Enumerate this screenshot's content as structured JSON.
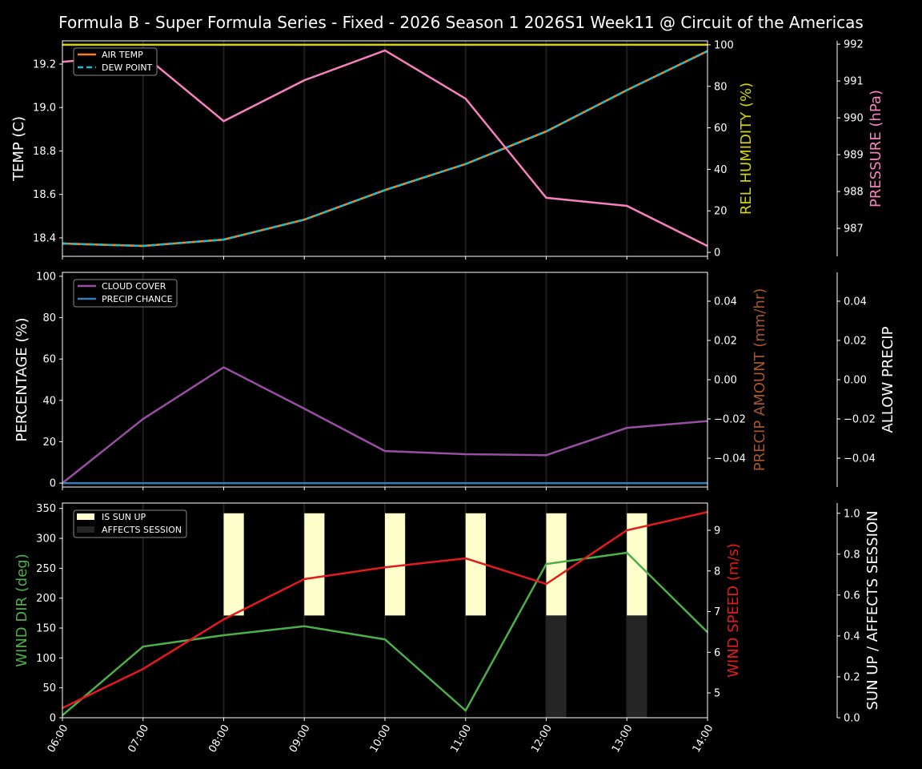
{
  "title": "Formula B - Super Formula Series - Fixed - 2026 Season 1 2026S1 Week11 @ Circuit of the Americas",
  "chart_data": [
    {
      "type": "line",
      "x": [
        "06:00",
        "07:00",
        "08:00",
        "09:00",
        "10:00",
        "11:00",
        "12:00",
        "13:00",
        "14:00"
      ],
      "axes": {
        "left": {
          "label": "TEMP (C)",
          "color": "#ffffff",
          "range": [
            18.315,
            19.307
          ],
          "ticks": [
            "18.4",
            "18.6",
            "18.8",
            "19.0",
            "19.2"
          ]
        },
        "right": {
          "label": "REL HUMIDITY (%)",
          "color": "#d4d400",
          "range": [
            -1.9,
            101.9
          ],
          "ticks": [
            "0",
            "20",
            "40",
            "60",
            "80",
            "100"
          ]
        },
        "right2": {
          "label": "PRESSURE (hPa)",
          "color": "#f781bf",
          "range": [
            986.24,
            992.09
          ],
          "ticks": [
            "987",
            "988",
            "989",
            "990",
            "991",
            "992"
          ]
        }
      },
      "series": [
        {
          "name": "AIR TEMP",
          "axis": "left",
          "color": "#ff7f0e",
          "dash": false,
          "values": [
            18.374,
            18.363,
            18.392,
            18.484,
            18.62,
            18.74,
            18.89,
            19.08,
            19.26
          ]
        },
        {
          "name": "DEW POINT",
          "axis": "left",
          "color": "#17becf",
          "dash": true,
          "values": [
            18.374,
            18.363,
            18.392,
            18.484,
            18.62,
            18.74,
            18.89,
            19.08,
            19.26
          ]
        },
        {
          "axis": "right",
          "color": "#d4d400",
          "values": [
            100,
            100,
            100,
            100,
            100,
            100,
            100,
            100,
            100
          ]
        },
        {
          "axis": "right2",
          "color": "#f781bf",
          "values": [
            991.52,
            991.72,
            989.91,
            991.02,
            991.83,
            990.52,
            987.83,
            987.61,
            986.52
          ]
        }
      ],
      "legend": "top-left",
      "grid": "vertical"
    },
    {
      "type": "line",
      "x": [
        "06:00",
        "07:00",
        "08:00",
        "09:00",
        "10:00",
        "11:00",
        "12:00",
        "13:00",
        "14:00"
      ],
      "axes": {
        "left": {
          "label": "PERCENTAGE (%)",
          "color": "#ffffff",
          "range": [
            -1.9,
            101.9
          ],
          "ticks": [
            "0",
            "20",
            "40",
            "60",
            "80",
            "100"
          ]
        },
        "right": {
          "label": "PRECIP AMOUNT (mm/hr)",
          "color": "#a65628",
          "range": [
            -0.0547,
            0.0547
          ],
          "ticks": [
            "−0.04",
            "−0.02",
            "0.00",
            "0.02",
            "0.04"
          ]
        },
        "right2": {
          "label": "ALLOW PRECIP",
          "color": "#ffffff",
          "range": [
            -0.0547,
            0.0547
          ],
          "ticks": [
            "−0.04",
            "−0.02",
            "0.00",
            "0.02",
            "0.04"
          ]
        }
      },
      "series": [
        {
          "name": "CLOUD COVER",
          "axis": "left",
          "color": "#984ea3",
          "dash": false,
          "values": [
            0,
            31,
            56,
            36,
            15.5,
            14,
            13.5,
            26.7,
            30
          ]
        },
        {
          "name": "PRECIP CHANCE",
          "axis": "left",
          "color": "#377eb8",
          "dash": false,
          "values": [
            0,
            0,
            0,
            0,
            0,
            0,
            0,
            0,
            0
          ]
        }
      ],
      "legend": "top-left",
      "grid": "vertical"
    },
    {
      "type": "line",
      "x": [
        "06:00",
        "07:00",
        "08:00",
        "09:00",
        "10:00",
        "11:00",
        "12:00",
        "13:00",
        "14:00"
      ],
      "axes": {
        "left": {
          "label": "WIND DIR (deg)",
          "color": "#4daf4a",
          "range": [
            0,
            359
          ],
          "ticks": [
            "0",
            "50",
            "100",
            "150",
            "200",
            "250",
            "300",
            "350"
          ]
        },
        "right": {
          "label": "WIND SPEED (m/s)",
          "color": "#e41a1c",
          "range": [
            4.39,
            9.67
          ],
          "ticks": [
            "5",
            "6",
            "7",
            "8",
            "9"
          ]
        },
        "right2": {
          "label": "SUN UP / AFFECTS SESSION",
          "color": "#ffffff",
          "range": [
            0,
            1.05
          ],
          "ticks": [
            "0.0",
            "0.2",
            "0.4",
            "0.6",
            "0.8",
            "1.0"
          ]
        }
      },
      "series": [
        {
          "axis": "left",
          "color": "#4daf4a",
          "values": [
            4,
            119,
            138,
            153,
            131,
            12,
            257,
            276,
            143
          ]
        },
        {
          "axis": "right",
          "color": "#e41a1c",
          "values": [
            4.63,
            5.59,
            6.81,
            7.8,
            8.09,
            8.31,
            7.68,
            9.0,
            9.45
          ]
        }
      ],
      "bars": [
        {
          "name": "IS SUN UP",
          "axis": "right2",
          "color": "#ffffcc",
          "values": [
            0,
            0,
            1,
            1,
            1,
            1,
            1,
            1,
            0
          ]
        },
        {
          "name": "AFFECTS SESSION",
          "axis": "right2",
          "color": "#252525",
          "values": [
            0,
            0,
            0,
            0,
            0,
            0,
            1,
            1,
            0
          ]
        }
      ],
      "legend": "top-left",
      "grid": "vertical"
    }
  ]
}
